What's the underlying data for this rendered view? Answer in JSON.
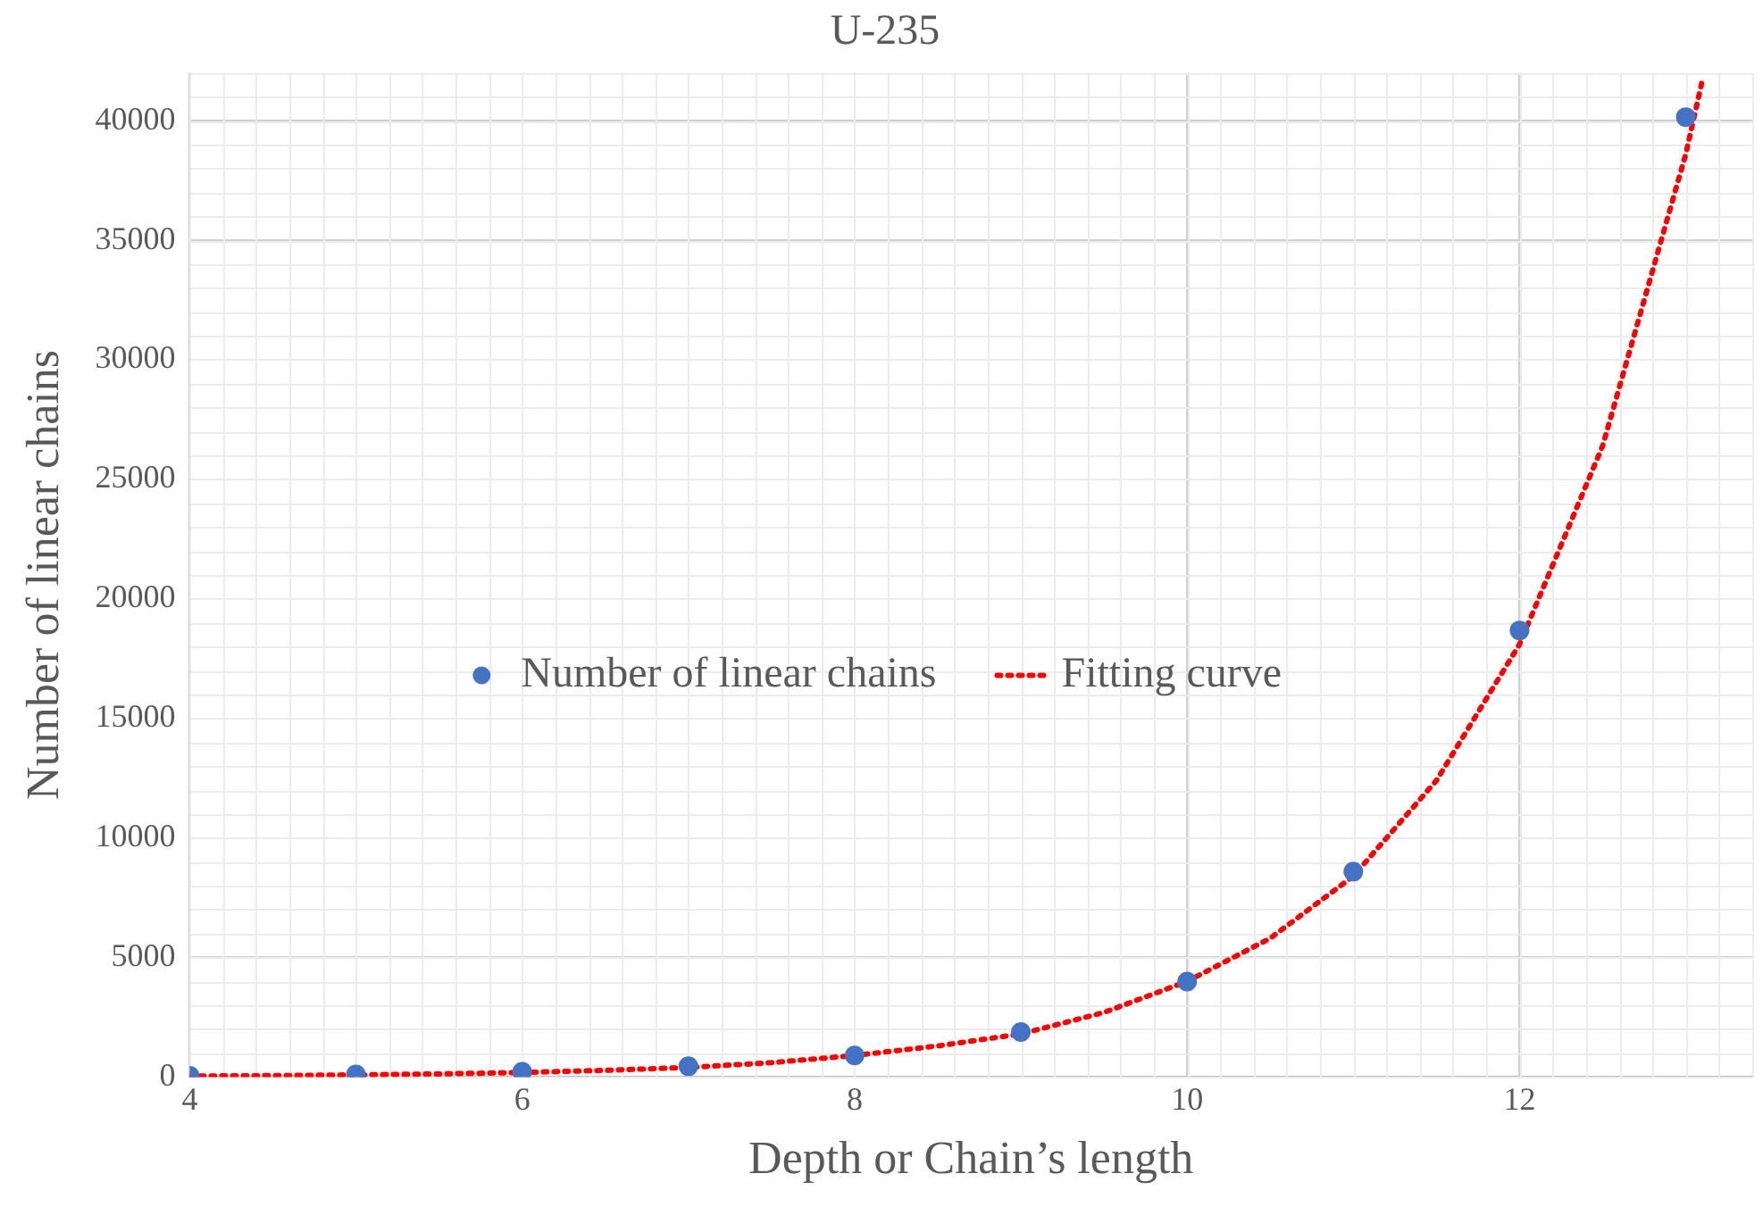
{
  "chart_data": {
    "type": "scatter",
    "title": "U-235",
    "xlabel": "Depth or Chain’s length",
    "ylabel": "Number of linear chains",
    "xlim": [
      4,
      13.4
    ],
    "xticks": [
      4,
      6,
      8,
      10,
      12
    ],
    "ylim": [
      0,
      42000
    ],
    "yticks": [
      0,
      5000,
      10000,
      15000,
      20000,
      25000,
      30000,
      35000,
      40000
    ],
    "grid": true,
    "legend": "center",
    "series": [
      {
        "name": "Number of linear chains",
        "marker": "circle",
        "color": "#4472c4",
        "x": [
          4,
          5,
          6,
          7,
          8,
          9,
          10,
          11,
          12,
          13
        ],
        "values": [
          50,
          110,
          220,
          450,
          900,
          1880,
          3990,
          8590,
          18680,
          40150
        ]
      },
      {
        "name": "Fitting curve",
        "type": "line",
        "color": "#ff0000",
        "line_style": "dotted",
        "x": [
          4,
          4.5,
          5,
          5.5,
          6,
          6.5,
          7,
          7.5,
          8,
          8.5,
          9,
          9.5,
          10,
          10.5,
          11,
          11.5,
          12,
          12.5,
          13,
          13.1
        ],
        "values": [
          40,
          60,
          90,
          130,
          190,
          280,
          400,
          600,
          900,
          1300,
          1800,
          2700,
          4000,
          5800,
          8400,
          12400,
          18100,
          26400,
          38600,
          41700
        ]
      }
    ]
  }
}
